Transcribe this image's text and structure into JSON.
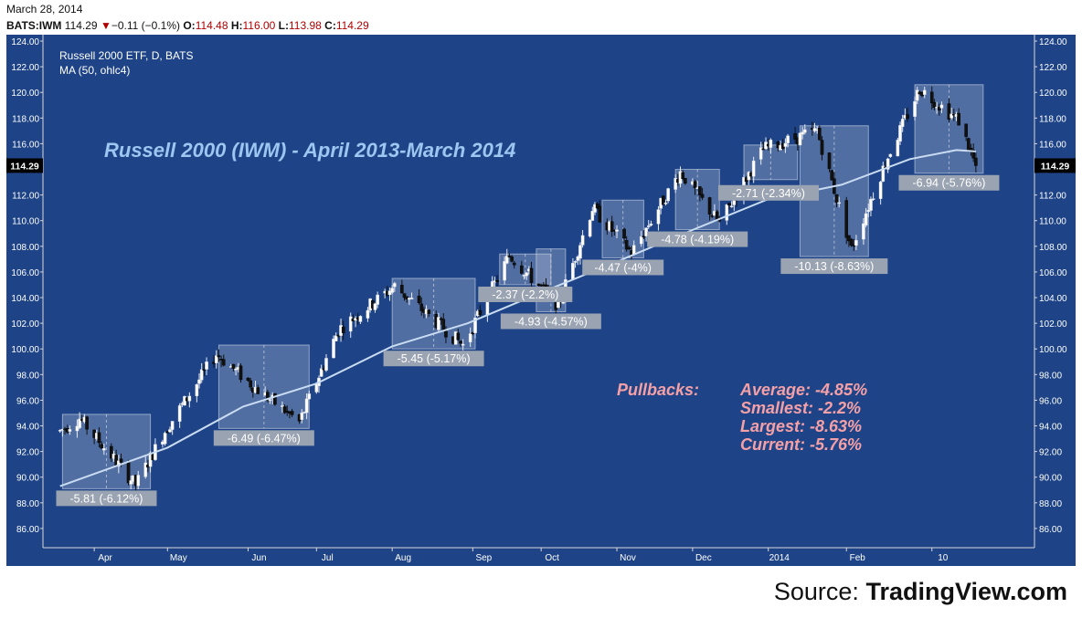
{
  "header": {
    "date": "March 28, 2014",
    "symbol": "BATS:IWM",
    "last": "114.29",
    "change_arrow": "▼",
    "change": "−0.11 (−0.1%)",
    "o_label": "O:",
    "o_val": "114.48",
    "h_label": "H:",
    "h_val": "116.00",
    "l_label": "L:",
    "l_val": "113.98",
    "c_label": "C:",
    "c_val": "114.29"
  },
  "source": {
    "prefix": "Source: ",
    "name": "TradingView.com"
  },
  "colors": {
    "background": "#1e4487",
    "panel_border": "#d8d8d8",
    "title": "#9dc6f0",
    "ma_line": "#c9dcf2",
    "annotation_text": "#f4a0a6",
    "label_box": "#9aa3b2",
    "price_badge": "#000000",
    "up_candle": "#ffffff",
    "down_candle": "#111111"
  },
  "chart_data": {
    "type": "candlestick",
    "legend_line1": "Russell 2000 ETF, D, BATS",
    "legend_line2": "MA (50, ohlc4)",
    "title": "Russell 2000 (IWM) - April 2013-March 2014",
    "x_ticks": [
      "Apr",
      "May",
      "Jun",
      "Jul",
      "Aug",
      "Sep",
      "Oct",
      "Nov",
      "Dec",
      "2014",
      "Feb",
      "10"
    ],
    "y_ticks": [
      "124.00",
      "122.00",
      "120.00",
      "118.00",
      "116.00",
      "114.00",
      "112.00",
      "110.00",
      "108.00",
      "106.00",
      "104.00",
      "102.00",
      "100.00",
      "98.00",
      "96.00",
      "94.00",
      "92.00",
      "90.00",
      "88.00",
      "86.00"
    ],
    "ylim": [
      84.5,
      124.5
    ],
    "last_price": "114.29",
    "trend_anchors": [
      {
        "date": "2013-03-18",
        "price": 93.6
      },
      {
        "date": "2013-03-26",
        "price": 94.6
      },
      {
        "date": "2013-04-18",
        "price": 89.4
      },
      {
        "date": "2013-04-30",
        "price": 93.6
      },
      {
        "date": "2013-05-21",
        "price": 99.6
      },
      {
        "date": "2013-06-07",
        "price": 96.8
      },
      {
        "date": "2013-06-24",
        "price": 94.3
      },
      {
        "date": "2013-07-10",
        "price": 101.5
      },
      {
        "date": "2013-08-02",
        "price": 104.9
      },
      {
        "date": "2013-08-30",
        "price": 100.3
      },
      {
        "date": "2013-09-18",
        "price": 107.3
      },
      {
        "date": "2013-10-08",
        "price": 103.4
      },
      {
        "date": "2013-10-22",
        "price": 111.0
      },
      {
        "date": "2013-11-07",
        "price": 107.5
      },
      {
        "date": "2013-11-27",
        "price": 113.8
      },
      {
        "date": "2013-12-13",
        "price": 109.8
      },
      {
        "date": "2013-12-31",
        "price": 115.6
      },
      {
        "date": "2014-01-22",
        "price": 117.0
      },
      {
        "date": "2014-02-05",
        "price": 107.8
      },
      {
        "date": "2014-02-20",
        "price": 115.0
      },
      {
        "date": "2014-03-05",
        "price": 120.3
      },
      {
        "date": "2014-03-21",
        "price": 117.8
      },
      {
        "date": "2014-03-28",
        "price": 114.29
      }
    ],
    "ma_series": [
      {
        "date": "2013-03-18",
        "price": 89.3
      },
      {
        "date": "2013-05-01",
        "price": 92.3
      },
      {
        "date": "2013-06-01",
        "price": 95.5
      },
      {
        "date": "2013-07-01",
        "price": 97.3
      },
      {
        "date": "2013-08-01",
        "price": 100.2
      },
      {
        "date": "2013-09-01",
        "price": 102.0
      },
      {
        "date": "2013-10-01",
        "price": 104.4
      },
      {
        "date": "2013-11-01",
        "price": 106.8
      },
      {
        "date": "2013-12-01",
        "price": 109.2
      },
      {
        "date": "2014-01-01",
        "price": 111.6
      },
      {
        "date": "2014-02-01",
        "price": 112.8
      },
      {
        "date": "2014-03-01",
        "price": 114.8
      },
      {
        "date": "2014-03-20",
        "price": 115.5
      },
      {
        "date": "2014-03-28",
        "price": 115.4
      }
    ],
    "pullbacks": [
      {
        "start": "2013-03-19",
        "end": "2013-04-24",
        "high": 94.9,
        "low": 89.1,
        "label": "-5.81 (-6.12%)",
        "label_at": "below"
      },
      {
        "start": "2013-05-22",
        "end": "2013-06-28",
        "high": 100.3,
        "low": 93.8,
        "label": "-6.49 (-6.47%)",
        "label_at": "below"
      },
      {
        "start": "2013-08-01",
        "end": "2013-09-04",
        "high": 105.5,
        "low": 100.0,
        "label": "-5.45 (-5.17%)",
        "label_at": "below"
      },
      {
        "start": "2013-09-14",
        "end": "2013-10-05",
        "high": 107.4,
        "low": 105.0,
        "label": "-2.37 (-2.2%)",
        "label_at": "below"
      },
      {
        "start": "2013-09-29",
        "end": "2013-10-11",
        "high": 107.8,
        "low": 102.9,
        "label": "-4.93 (-4.57%)",
        "label_at": "below"
      },
      {
        "start": "2013-10-26",
        "end": "2013-11-12",
        "high": 111.6,
        "low": 107.1,
        "label": "-4.47 (-4%)",
        "label_at": "below"
      },
      {
        "start": "2013-11-25",
        "end": "2013-12-13",
        "high": 114.0,
        "low": 109.3,
        "label": "-4.78 (-4.19%)",
        "label_at": "below"
      },
      {
        "start": "2013-12-23",
        "end": "2014-01-14",
        "high": 115.9,
        "low": 113.2,
        "label": "-2.71 (-2.34%)",
        "label_at": "left-below"
      },
      {
        "start": "2014-01-15",
        "end": "2014-02-12",
        "high": 117.4,
        "low": 107.2,
        "label": "-10.13 (-8.63%)",
        "label_at": "below"
      },
      {
        "start": "2014-03-03",
        "end": "2014-03-31",
        "high": 120.6,
        "low": 113.7,
        "label": "-6.94 (-5.76%)",
        "label_at": "below"
      }
    ],
    "annotation": {
      "heading": "Pullbacks:",
      "lines": [
        "Average: -4.85%",
        "Smallest: -2.2%",
        "Largest: -8.63%",
        "Current: -5.76%"
      ]
    }
  }
}
